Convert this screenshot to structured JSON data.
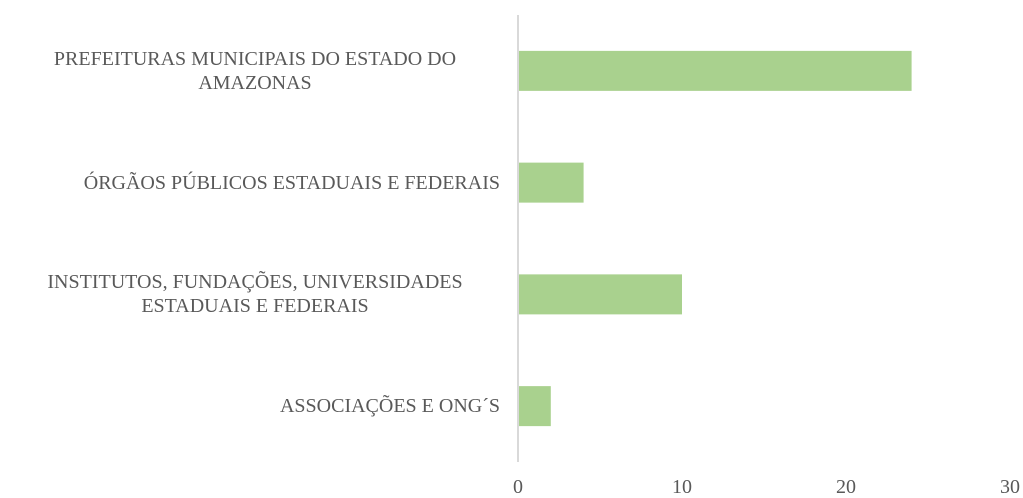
{
  "chart_data": {
    "type": "bar",
    "orientation": "horizontal",
    "categories": [
      "PREFEITURAS MUNICIPAIS DO ESTADO DO AMAZONAS",
      "ÓRGÃOS PÚBLICOS ESTADUAIS E FEDERAIS",
      "INSTITUTOS, FUNDAÇÕES, UNIVERSIDADES ESTADUAIS E FEDERAIS",
      "ASSOCIAÇÕES E ONG´S"
    ],
    "values": [
      24,
      4,
      10,
      2
    ],
    "color": "#a9d18e",
    "xlim": [
      0,
      30
    ],
    "xticks": [
      0,
      10,
      20,
      30
    ],
    "grid": false
  }
}
